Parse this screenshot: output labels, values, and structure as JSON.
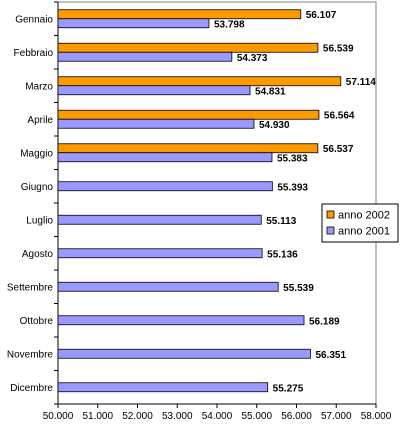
{
  "chart_data": {
    "type": "bar",
    "orientation": "horizontal",
    "categories": [
      "Gennaio",
      "Febbraio",
      "Marzo",
      "Aprile",
      "Maggio",
      "Giugno",
      "Luglio",
      "Agosto",
      "Settembre",
      "Ottobre",
      "Novembre",
      "Dicembre"
    ],
    "series": [
      {
        "name": "anno 2002",
        "color": "#ff9900",
        "values": [
          56107,
          56539,
          57114,
          56564,
          56537,
          null,
          null,
          null,
          null,
          null,
          null,
          null
        ],
        "labels": [
          "56.107",
          "56.539",
          "57.114",
          "56.564",
          "56.537",
          "",
          "",
          "",
          "",
          "",
          "",
          ""
        ]
      },
      {
        "name": "anno 2001",
        "color": "#9999ff",
        "values": [
          53798,
          54373,
          54831,
          54930,
          55383,
          55393,
          55113,
          55136,
          55539,
          56189,
          56351,
          55275
        ],
        "labels": [
          "53.798",
          "54.373",
          "54.831",
          "54.930",
          "55.383",
          "55.393",
          "55.113",
          "55.136",
          "55.539",
          "56.189",
          "56.351",
          "55.275"
        ]
      }
    ],
    "xlim": [
      50000,
      58000
    ],
    "xticks": [
      50000,
      51000,
      52000,
      53000,
      54000,
      55000,
      56000,
      57000,
      58000
    ],
    "xtick_labels": [
      "50.000",
      "51.000",
      "52.000",
      "53.000",
      "54.000",
      "55.000",
      "56.000",
      "57.000",
      "58.000"
    ],
    "legend_position": "right",
    "grid": false
  }
}
